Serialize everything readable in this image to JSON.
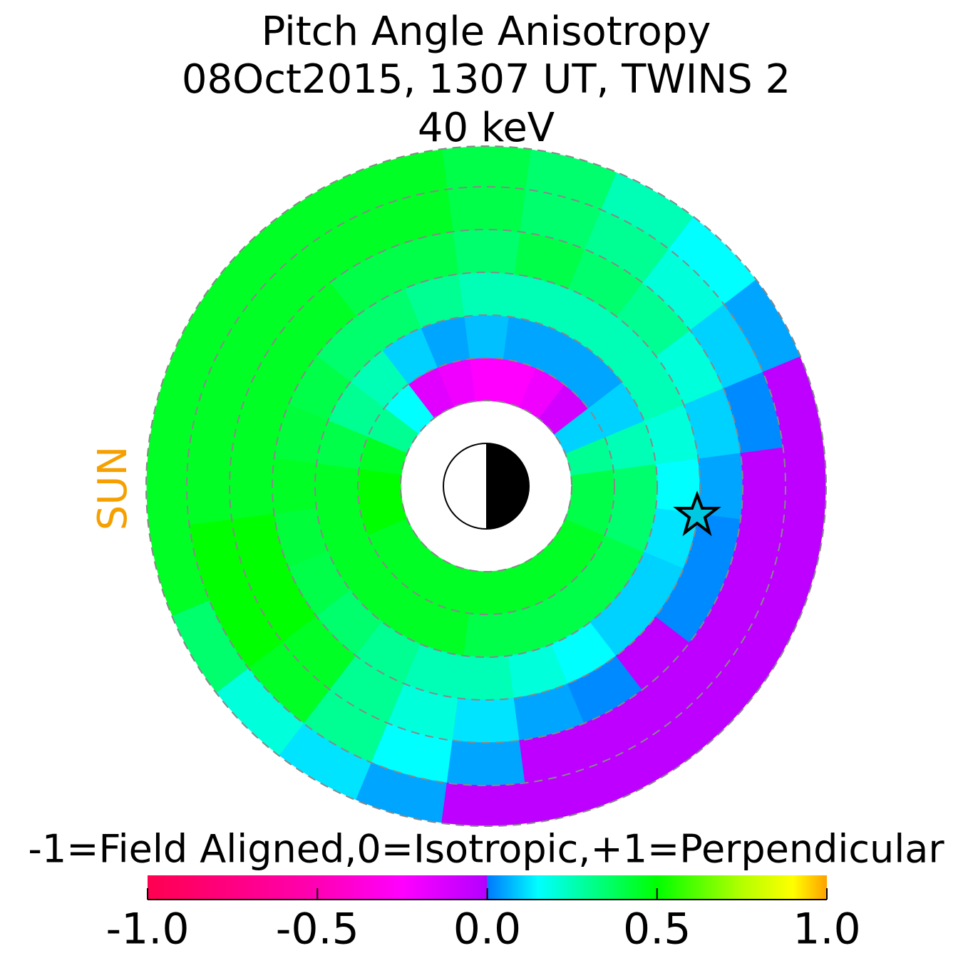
{
  "chart_data": {
    "type": "polar-heatmap",
    "title": "Pitch Angle Anisotropy",
    "subtitle": "08Oct2015, 1307 UT,  TWINS 2",
    "energy": "40 keV",
    "sun_label": "SUN",
    "colorbar_label": "-1=Field Aligned,0=Isotropic,+1=Perpendicular",
    "clim": [
      -1,
      1
    ],
    "cticks": [
      {
        "value": -1,
        "label": "-1.0"
      },
      {
        "value": -0.5,
        "label": "-0.5"
      },
      {
        "value": 0,
        "label": "0.0"
      },
      {
        "value": 0.5,
        "label": "0.5"
      },
      {
        "value": 1,
        "label": "1.0"
      }
    ],
    "colorscale": [
      {
        "value": -1,
        "color": "#ff0050"
      },
      {
        "value": -0.5,
        "color": "#ff00b4"
      },
      {
        "value": -0.25,
        "color": "#ff00ff"
      },
      {
        "value": -0.001,
        "color": "#b400ff"
      },
      {
        "value": 0,
        "color": "#0078ff"
      },
      {
        "value": 0.15,
        "color": "#00ffff"
      },
      {
        "value": 0.5,
        "color": "#00ff00"
      },
      {
        "value": 0.75,
        "color": "#b4ff00"
      },
      {
        "value": 0.9,
        "color": "#ffff00"
      },
      {
        "value": 1,
        "color": "#ffa000"
      }
    ],
    "values": [
      [
        0.4,
        0.3,
        0.1,
        -0.1,
        -0.2,
        -0.25,
        -0.25,
        -0.2,
        -0.15,
        0.15,
        0.3,
        0.45,
        0.5,
        0.5,
        0.45,
        0.45,
        0.45,
        0.45,
        0.45,
        0.45,
        0.45,
        0.45,
        0.45,
        0.4
      ],
      [
        0.35,
        0.25,
        0.1,
        0.05,
        0.05,
        0.05,
        0.08,
        0.05,
        0.1,
        0.25,
        0.3,
        0.4,
        0.45,
        0.45,
        0.45,
        0.45,
        0.45,
        0.45,
        0.4,
        0.4,
        0.4,
        0.4,
        0.4,
        0.35
      ],
      [
        0.15,
        0.2,
        0.25,
        0.25,
        0.25,
        0.25,
        0.25,
        0.3,
        0.35,
        0.35,
        0.4,
        0.42,
        0.45,
        0.42,
        0.4,
        0.35,
        0.3,
        0.25,
        0.25,
        0.2,
        0.15,
        0.1,
        0.1,
        0.12
      ],
      [
        0.05,
        0.1,
        0.2,
        0.3,
        0.35,
        0.4,
        0.35,
        0.4,
        0.4,
        0.45,
        0.45,
        0.45,
        0.45,
        0.5,
        0.5,
        0.45,
        0.3,
        0.2,
        0.12,
        0.05,
        0.02,
        -0.03,
        0.02,
        0.02
      ],
      [
        -0.03,
        0.02,
        0.1,
        0.2,
        0.3,
        0.35,
        0.4,
        0.45,
        0.45,
        0.45,
        0.45,
        0.45,
        0.45,
        0.5,
        0.5,
        0.45,
        0.3,
        0.15,
        0.05,
        -0.03,
        -0.03,
        -0.03,
        -0.03,
        -0.03
      ],
      [
        -0.03,
        -0.03,
        0.05,
        0.15,
        0.25,
        0.35,
        0.4,
        0.45,
        0.45,
        0.45,
        0.45,
        0.45,
        0.45,
        0.45,
        0.35,
        0.2,
        0.12,
        0.05,
        -0.03,
        -0.03,
        -0.03,
        -0.03,
        -0.03,
        -0.03
      ]
    ]
  }
}
